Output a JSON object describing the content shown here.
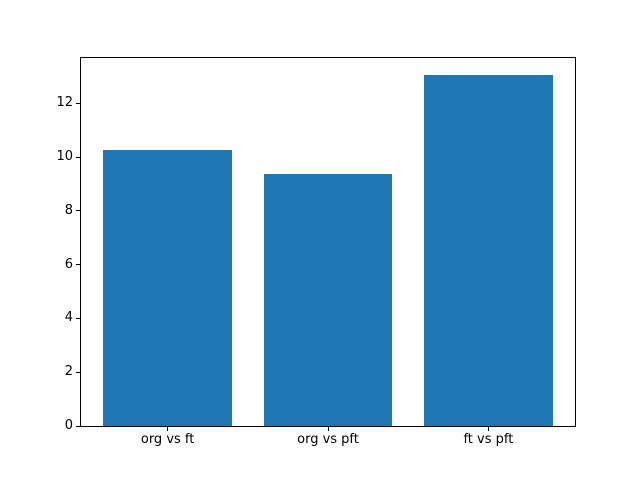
{
  "chart_data": {
    "type": "bar",
    "categories": [
      "org vs ft",
      "org vs pft",
      "ft vs pft"
    ],
    "values": [
      10.26,
      9.37,
      13.05
    ],
    "title": "",
    "xlabel": "",
    "ylabel": "",
    "ylim": [
      0,
      13.69
    ],
    "xlim": [
      -0.54,
      2.54
    ],
    "yticks": [
      0,
      2,
      4,
      6,
      8,
      10,
      12
    ],
    "bar_width_units": 0.8,
    "bar_color": "#1f77b4",
    "spine_color": "#000000",
    "background_color": "#ffffff",
    "grid": false,
    "legend": null
  }
}
